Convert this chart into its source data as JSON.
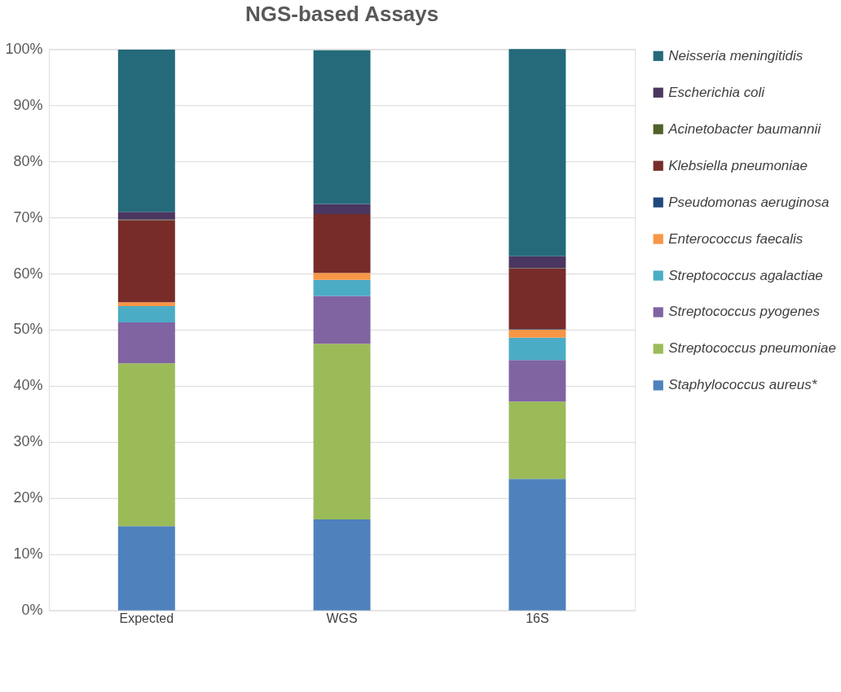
{
  "chart_data": {
    "type": "bar",
    "title": "NGS-based Assays",
    "stacked": true,
    "categories": [
      "Expected",
      "WGS",
      "16S"
    ],
    "series": [
      {
        "name": "Staphylococcus aureus*",
        "color": "#4f81bd",
        "values": [
          15,
          16.2,
          23.4
        ]
      },
      {
        "name": "Streptococcus pneumoniae",
        "color": "#9bbb59",
        "values": [
          29,
          31.3,
          13.8
        ]
      },
      {
        "name": "Streptococcus pyogenes",
        "color": "#8064a2",
        "values": [
          7.3,
          8.5,
          7.4
        ]
      },
      {
        "name": "Streptococcus agalactiae",
        "color": "#4bacc6",
        "values": [
          2.9,
          2.9,
          4.0
        ]
      },
      {
        "name": "Enterococcus faecalis",
        "color": "#f79646",
        "values": [
          0.7,
          1.2,
          1.4
        ]
      },
      {
        "name": "Pseudomonas aeruginosa",
        "color": "#1f497d",
        "values": [
          null,
          null,
          0.1
        ]
      },
      {
        "name": "Klebsiella pneumoniae",
        "color": "#772c2a",
        "values": [
          14.6,
          10.5,
          10.8
        ]
      },
      {
        "name": "Acinetobacter baumannii",
        "color": "#4f6228",
        "values": [
          0.1,
          null,
          0.1
        ]
      },
      {
        "name": "Escherichia coli",
        "color": "#4a3660",
        "values": [
          1.4,
          1.8,
          2.1
        ]
      },
      {
        "name": "Neisseria meningitidis",
        "color": "#246a7a",
        "values": [
          28.9,
          27.4,
          36.9
        ]
      }
    ],
    "ylim": [
      0,
      100
    ],
    "yticks": [
      {
        "value": 0,
        "label": "0%"
      },
      {
        "value": 10,
        "label": "10%"
      },
      {
        "value": 20,
        "label": "20%"
      },
      {
        "value": 30,
        "label": "30%"
      },
      {
        "value": 40,
        "label": "40%"
      },
      {
        "value": 50,
        "label": "50%"
      },
      {
        "value": 60,
        "label": "60%"
      },
      {
        "value": 70,
        "label": "70%"
      },
      {
        "value": 80,
        "label": "80%"
      },
      {
        "value": 90,
        "label": "90%"
      },
      {
        "value": 100,
        "label": "100%"
      }
    ],
    "grid": "y",
    "legend": "right"
  }
}
